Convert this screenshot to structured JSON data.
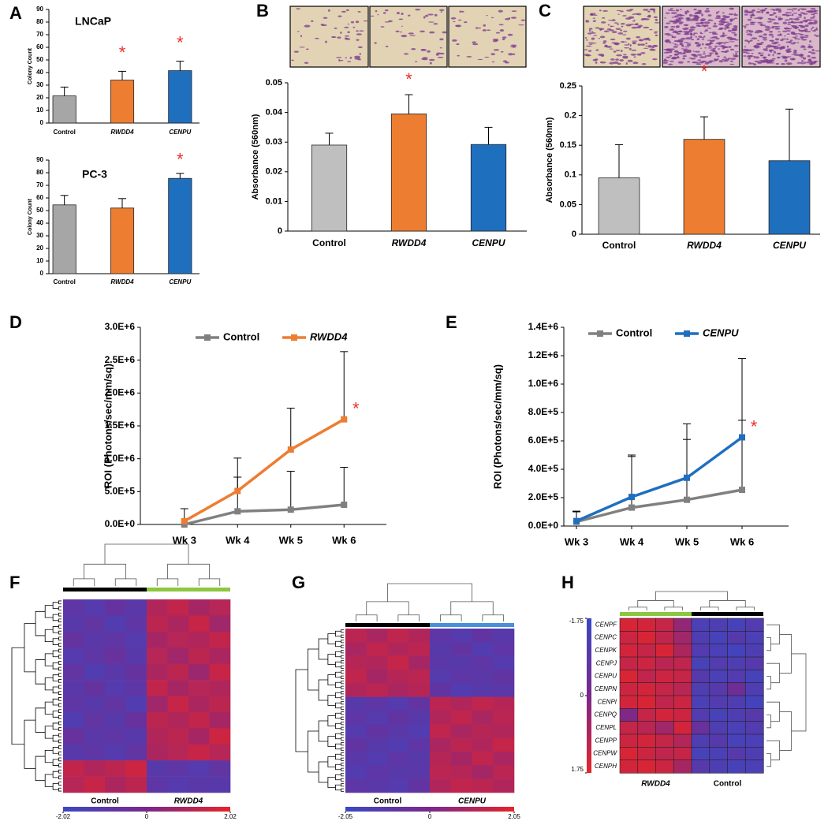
{
  "chart_data": [
    {
      "type": "bar",
      "panel": "A",
      "title": "LNCaP",
      "y_label": "Colony Count",
      "categories": [
        "Control",
        "RWDD4",
        "CENPU"
      ],
      "values": [
        21.5,
        34,
        41.5
      ],
      "errors": [
        7,
        7,
        7.5
      ],
      "colors": [
        "#a6a6a6",
        "#ed7d31",
        "#1f6fbf"
      ],
      "ylim": [
        0,
        90
      ],
      "yticks": [
        0,
        10,
        20,
        30,
        40,
        50,
        60,
        70,
        80,
        90
      ],
      "annotations": [
        {
          "text": "*",
          "category": "RWDD4"
        },
        {
          "text": "*",
          "category": "CENPU"
        }
      ]
    },
    {
      "type": "bar",
      "title": "PC-3",
      "y_label": "Colony Count",
      "categories": [
        "Control",
        "RWDD4",
        "CENPU"
      ],
      "values": [
        54.5,
        52,
        75.5
      ],
      "errors": [
        7.5,
        7.5,
        4
      ],
      "colors": [
        "#a6a6a6",
        "#ed7d31",
        "#1f6fbf"
      ],
      "ylim": [
        0,
        90
      ],
      "yticks": [
        0,
        10,
        20,
        30,
        40,
        50,
        60,
        70,
        80,
        90
      ],
      "annotations": [
        {
          "text": "*",
          "category": "CENPU"
        }
      ]
    },
    {
      "type": "bar",
      "panel": "B",
      "y_label": "Absorbance (560nm)",
      "categories": [
        "Control",
        "RWDD4",
        "CENPU"
      ],
      "values": [
        0.029,
        0.0395,
        0.0292
      ],
      "errors": [
        0.004,
        0.0065,
        0.0058
      ],
      "colors": [
        "#bfbfbf",
        "#ed7d31",
        "#1f6fbf"
      ],
      "ylim": [
        0,
        0.05
      ],
      "yticks": [
        0,
        0.01,
        0.02,
        0.03,
        0.04,
        0.05
      ],
      "annotations": [
        {
          "text": "*",
          "category": "RWDD4"
        }
      ]
    },
    {
      "type": "bar",
      "panel": "C",
      "y_label": "Absorbance (560nm)",
      "categories": [
        "Control",
        "RWDD4",
        "CENPU"
      ],
      "values": [
        0.095,
        0.16,
        0.124
      ],
      "errors": [
        0.056,
        0.038,
        0.087
      ],
      "colors": [
        "#bfbfbf",
        "#ed7d31",
        "#1f6fbf"
      ],
      "ylim": [
        0,
        0.25
      ],
      "yticks": [
        0,
        0.05,
        0.1,
        0.15,
        0.2,
        0.25
      ],
      "annotations": [
        {
          "text": "*",
          "category": "RWDD4"
        }
      ]
    },
    {
      "type": "line",
      "panel": "D",
      "y_label": "ROI (Photons/sec/mm/sq)",
      "categories": [
        "Wk 3",
        "Wk 4",
        "Wk 5",
        "Wk 6"
      ],
      "series": [
        {
          "name": "Control",
          "color": "#808080",
          "values": [
            0,
            200000,
            225000,
            300000
          ],
          "errors": [
            null,
            520000,
            585000,
            570000
          ]
        },
        {
          "name": "RWDD4",
          "color": "#ed7d31",
          "values": [
            50000,
            510000,
            1140000,
            1600000
          ],
          "errors": [
            190000,
            500000,
            630000,
            1030000
          ]
        }
      ],
      "ylim": [
        0,
        3000000
      ],
      "yticks": [
        {
          "value": 0,
          "label": "0.0E+0"
        },
        {
          "value": 500000,
          "label": "5.0E+5"
        },
        {
          "value": 1000000,
          "label": "1.0E+6"
        },
        {
          "value": 1500000,
          "label": "1.5E+6"
        },
        {
          "value": 2000000,
          "label": "2.0E+6"
        },
        {
          "value": 2500000,
          "label": "2.5E+6"
        },
        {
          "value": 3000000,
          "label": "3.0E+6"
        }
      ],
      "annotations": [
        {
          "text": "*",
          "series": "RWDD4",
          "category": "Wk 6"
        }
      ]
    },
    {
      "type": "line",
      "panel": "E",
      "y_label": "ROI (Photons/sec/mm/sq)",
      "categories": [
        "Wk 3",
        "Wk 4",
        "Wk 5",
        "Wk 6"
      ],
      "series": [
        {
          "name": "Control",
          "color": "#808080",
          "values": [
            30000,
            130000,
            185000,
            255000
          ],
          "errors": [
            70000,
            370000,
            425000,
            490000
          ]
        },
        {
          "name": "CENPU",
          "color": "#1f6fbf",
          "values": [
            35000,
            205000,
            340000,
            625000
          ],
          "errors": [
            70000,
            285000,
            380000,
            555000
          ]
        }
      ],
      "ylim": [
        0,
        1400000
      ],
      "yticks": [
        {
          "value": 0,
          "label": "0.0E+0"
        },
        {
          "value": 200000,
          "label": "2.0E+5"
        },
        {
          "value": 400000,
          "label": "4.0E+5"
        },
        {
          "value": 600000,
          "label": "6.0E+5"
        },
        {
          "value": 800000,
          "label": "8.0E+5"
        },
        {
          "value": 1000000,
          "label": "1.0E+6"
        },
        {
          "value": 1200000,
          "label": "1.2E+6"
        },
        {
          "value": 1400000,
          "label": "1.4E+6"
        }
      ],
      "annotations": [
        {
          "text": "*",
          "series": "CENPU",
          "category": "Wk 6"
        }
      ]
    },
    {
      "type": "heatmap",
      "panel": "F",
      "groups": [
        {
          "name": "Control",
          "color": "#000000"
        },
        {
          "name": "RWDD4",
          "color": "#8dc63f"
        }
      ],
      "matrix": [
        [
          -0.9,
          -1.2,
          -0.7,
          -1.0,
          1.0,
          1.3,
          0.8,
          1.1
        ],
        [
          -1.1,
          -0.8,
          -1.3,
          -0.9,
          1.2,
          0.9,
          1.4,
          0.7
        ],
        [
          -0.7,
          -1.0,
          -0.9,
          -1.2,
          0.8,
          1.1,
          1.0,
          1.3
        ],
        [
          -1.2,
          -0.9,
          -0.6,
          -1.1,
          1.1,
          0.7,
          1.2,
          0.9
        ],
        [
          -0.8,
          -1.3,
          -1.0,
          -0.7,
          0.9,
          1.2,
          0.6,
          1.4
        ],
        [
          -1.0,
          -0.7,
          -1.2,
          -0.9,
          1.3,
          0.8,
          1.1,
          1.0
        ],
        [
          -0.9,
          -1.1,
          -0.8,
          -1.3,
          0.7,
          1.4,
          0.9,
          1.2
        ],
        [
          -1.3,
          -0.8,
          -1.1,
          -0.6,
          1.2,
          1.0,
          1.3,
          0.8
        ],
        [
          -0.6,
          -1.0,
          -0.9,
          -1.1,
          1.0,
          1.2,
          0.8,
          1.5
        ],
        [
          -1.1,
          -0.9,
          -1.2,
          -0.8,
          0.9,
          1.1,
          1.4,
          1.1
        ],
        [
          1.3,
          1.0,
          1.2,
          1.5,
          -1.1,
          -0.9,
          -1.2,
          -0.8
        ],
        [
          1.1,
          1.4,
          0.9,
          1.2,
          -0.9,
          -1.2,
          -1.0,
          -1.1
        ]
      ],
      "zlim": [
        -2.02,
        2.02
      ],
      "zticks": [
        -2.02,
        0,
        2.02
      ]
    },
    {
      "type": "heatmap",
      "panel": "G",
      "groups": [
        {
          "name": "Control",
          "color": "#000000"
        },
        {
          "name": "CENPU",
          "color": "#4a90d9"
        }
      ],
      "matrix": [
        [
          1.2,
          0.9,
          1.3,
          1.0,
          -0.9,
          -1.2,
          -0.8,
          -1.1
        ],
        [
          0.9,
          1.3,
          1.0,
          1.2,
          -1.1,
          -0.8,
          -1.3,
          -0.9
        ],
        [
          1.1,
          1.0,
          1.4,
          0.8,
          -1.0,
          -1.1,
          -0.9,
          -1.2
        ],
        [
          1.3,
          0.8,
          1.1,
          1.2,
          -1.2,
          -0.9,
          -1.0,
          -0.8
        ],
        [
          1.0,
          1.2,
          0.9,
          1.1,
          -0.8,
          -1.3,
          -1.1,
          -1.0
        ],
        [
          -1.1,
          -0.9,
          -1.2,
          -0.8,
          1.2,
          1.0,
          1.3,
          1.1
        ],
        [
          -0.9,
          -1.2,
          -0.8,
          -1.1,
          1.0,
          1.3,
          0.9,
          1.2
        ],
        [
          -1.2,
          -0.8,
          -1.0,
          -1.3,
          1.3,
          0.9,
          1.1,
          1.0
        ],
        [
          -0.8,
          -1.1,
          -1.3,
          -0.9,
          0.9,
          1.2,
          1.0,
          1.4
        ],
        [
          -1.0,
          -1.3,
          -0.9,
          -1.1,
          1.1,
          0.8,
          1.3,
          0.9
        ],
        [
          -1.3,
          -0.9,
          -1.1,
          -1.0,
          1.2,
          1.1,
          0.8,
          1.2
        ],
        [
          -0.9,
          -1.0,
          -1.2,
          -0.8,
          1.0,
          1.3,
          1.2,
          1.0
        ]
      ],
      "zlim": [
        -2.05,
        2.05
      ],
      "zticks": [
        -2.05,
        0,
        2.05
      ]
    },
    {
      "type": "heatmap",
      "panel": "H",
      "groups": [
        {
          "name": "RWDD4",
          "color": "#8dc63f"
        },
        {
          "name": "Control",
          "color": "#000000"
        }
      ],
      "rows": [
        "CENPF",
        "CENPC",
        "CENPK",
        "CENPJ",
        "CENPU",
        "CENPN",
        "CENPI",
        "CENPQ",
        "CENPL",
        "CENPP",
        "CENPW",
        "CENPH"
      ],
      "matrix": [
        [
          1.5,
          1.4,
          1.2,
          0.4,
          -1.3,
          -1.2,
          -1.4,
          -1.1
        ],
        [
          1.3,
          1.5,
          1.1,
          0.6,
          -1.2,
          -1.4,
          -1.0,
          -1.3
        ],
        [
          1.4,
          1.2,
          1.5,
          0.8,
          -1.1,
          -1.3,
          -1.5,
          -1.2
        ],
        [
          1.2,
          1.3,
          1.0,
          1.1,
          -1.4,
          -1.1,
          -1.2,
          -1.0
        ],
        [
          1.5,
          1.1,
          1.3,
          1.2,
          -1.0,
          -1.3,
          -1.1,
          -1.4
        ],
        [
          1.3,
          1.4,
          1.2,
          1.0,
          -1.2,
          -1.0,
          -0.3,
          -1.2
        ],
        [
          1.4,
          1.5,
          1.1,
          1.3,
          -1.3,
          -1.1,
          -1.2,
          -1.5
        ],
        [
          0.1,
          1.2,
          1.4,
          1.3,
          -1.1,
          -1.4,
          -1.2,
          -1.0
        ],
        [
          1.2,
          1.0,
          0.6,
          1.4,
          -0.5,
          -1.2,
          -1.3,
          -1.1
        ],
        [
          1.3,
          1.4,
          1.2,
          0.9,
          -1.2,
          -1.0,
          -1.4,
          -1.3
        ],
        [
          1.5,
          1.3,
          1.1,
          1.2,
          -1.4,
          -1.3,
          -1.0,
          -1.2
        ],
        [
          1.4,
          1.5,
          1.3,
          0.7,
          -1.0,
          -1.2,
          -1.4,
          -1.3
        ]
      ],
      "zlim": [
        -1.75,
        1.75
      ],
      "zticks": [
        -1.75,
        0,
        1.75
      ]
    }
  ]
}
